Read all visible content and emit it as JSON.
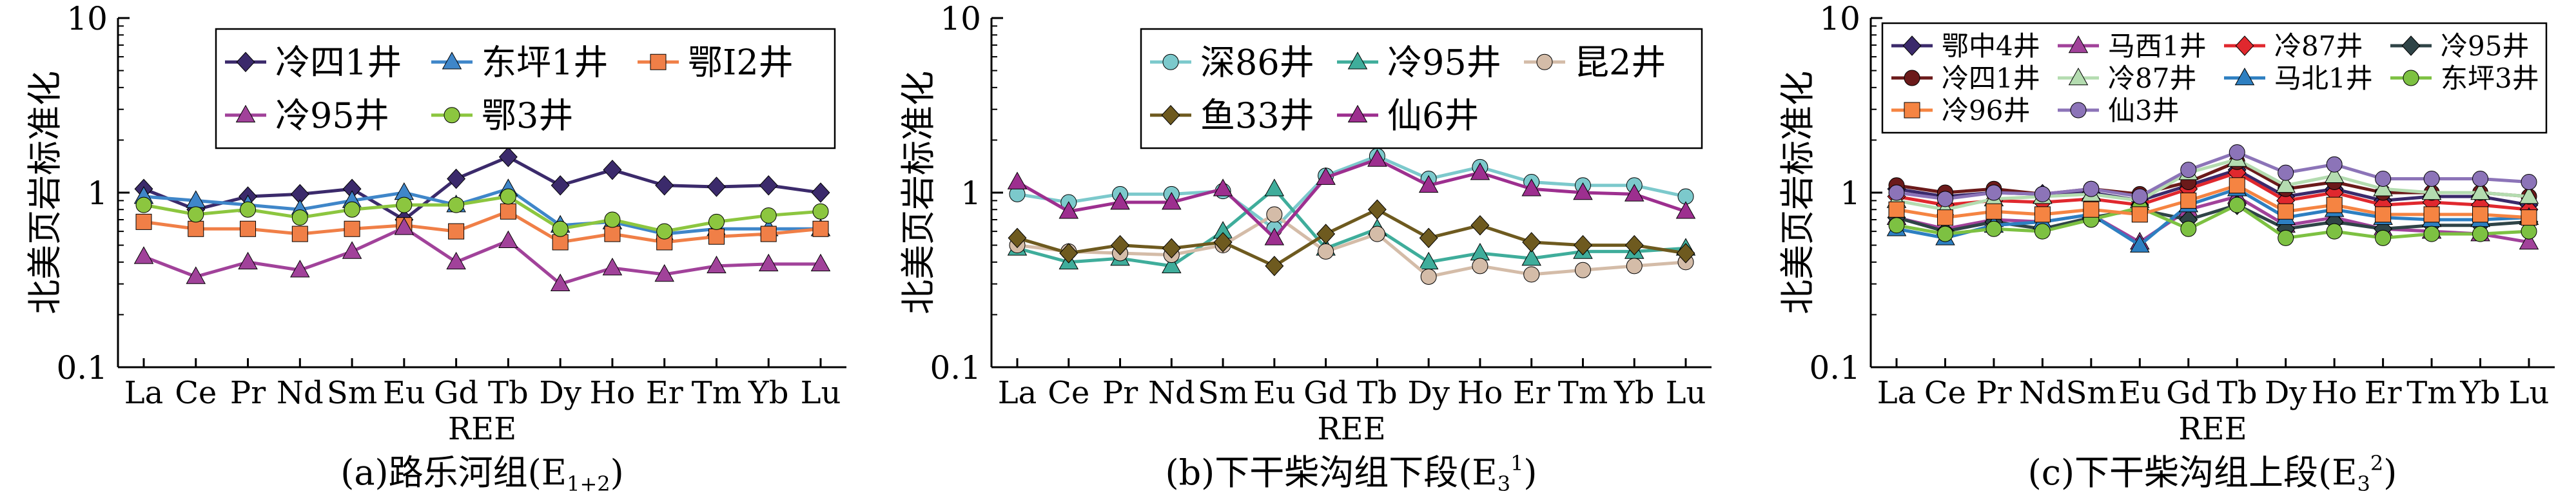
{
  "colors": {
    "dark_purple": "#3b2a6b",
    "steel_blue": "#3f86c9",
    "orange": "#f07f47",
    "magenta": "#a1429a",
    "lime": "#8cc63f",
    "teal_light": "#7cc9cc",
    "teal": "#3fad9b",
    "beige": "#d4bca8",
    "olive_brown": "#6e5a1f",
    "bright_magenta": "#9d2f8f",
    "red": "#e0282e",
    "dark_slate": "#2f4447",
    "dark_red": "#6b1a1a",
    "pale_green": "#b4dcb0",
    "med_blue": "#2d7fc1",
    "green": "#7dc142",
    "orange2": "#f58442",
    "lavender": "#8c74b8"
  },
  "chart_data": [
    {
      "type": "line",
      "caption_main": "(a)路乐河组(E",
      "caption_sub": "1+2",
      "caption_end": ")",
      "xlabel": "REE",
      "ylabel": "北美页岩标准化",
      "yscale": "log",
      "ylim": [
        0.1,
        10
      ],
      "yticks": [
        "0.1",
        "1",
        "10"
      ],
      "categories": [
        "La",
        "Ce",
        "Pr",
        "Nd",
        "Sm",
        "Eu",
        "Gd",
        "Tb",
        "Dy",
        "Ho",
        "Er",
        "Tm",
        "Yb",
        "Lu"
      ],
      "legend_columns": 3,
      "series": [
        {
          "name": "冷四1井",
          "color": "#3b2a6b",
          "marker": "diamond",
          "values": [
            1.05,
            0.8,
            0.95,
            0.98,
            1.05,
            0.7,
            1.2,
            1.6,
            1.1,
            1.35,
            1.1,
            1.08,
            1.1,
            1.0
          ]
        },
        {
          "name": "东坪1井",
          "color": "#3f86c9",
          "marker": "triangle",
          "values": [
            0.95,
            0.9,
            0.85,
            0.8,
            0.9,
            1.0,
            0.85,
            1.05,
            0.65,
            0.68,
            0.58,
            0.62,
            0.62,
            0.62
          ]
        },
        {
          "name": "鄂I2井",
          "color": "#f07f47",
          "marker": "square",
          "values": [
            0.68,
            0.62,
            0.62,
            0.58,
            0.62,
            0.65,
            0.6,
            0.78,
            0.52,
            0.58,
            0.52,
            0.56,
            0.58,
            0.62
          ]
        },
        {
          "name": "冷95井",
          "color": "#a1429a",
          "marker": "triangle",
          "values": [
            0.43,
            0.33,
            0.4,
            0.36,
            0.46,
            0.63,
            0.4,
            0.53,
            0.3,
            0.37,
            0.34,
            0.38,
            0.39,
            0.39
          ]
        },
        {
          "name": "鄂3井",
          "color": "#8cc63f",
          "marker": "circle",
          "values": [
            0.85,
            0.75,
            0.8,
            0.72,
            0.8,
            0.85,
            0.85,
            0.95,
            0.62,
            0.7,
            0.6,
            0.68,
            0.74,
            0.78
          ]
        }
      ]
    },
    {
      "type": "line",
      "caption_main": "(b)下干柴沟组下段(E",
      "caption_sub": "3",
      "caption_sup": "1",
      "caption_end": ")",
      "xlabel": "REE",
      "ylabel": "北美页岩标准化",
      "yscale": "log",
      "ylim": [
        0.1,
        10
      ],
      "yticks": [
        "0.1",
        "1",
        "10"
      ],
      "categories": [
        "La",
        "Ce",
        "Pr",
        "Nd",
        "Sm",
        "Eu",
        "Gd",
        "Tb",
        "Dy",
        "Ho",
        "Er",
        "Tm",
        "Yb",
        "Lu"
      ],
      "legend_columns": 3,
      "series": [
        {
          "name": "深86井",
          "color": "#7cc9cc",
          "marker": "circle",
          "values": [
            0.98,
            0.88,
            0.98,
            0.98,
            1.02,
            0.62,
            1.25,
            1.62,
            1.2,
            1.4,
            1.15,
            1.1,
            1.1,
            0.95
          ]
        },
        {
          "name": "冷95井",
          "color": "#3fad9b",
          "marker": "triangle",
          "values": [
            0.48,
            0.4,
            0.42,
            0.38,
            0.6,
            1.05,
            0.48,
            0.62,
            0.4,
            0.45,
            0.42,
            0.46,
            0.46,
            0.48
          ]
        },
        {
          "name": "昆2井",
          "color": "#d4bca8",
          "marker": "circle",
          "values": [
            0.5,
            0.46,
            0.45,
            0.44,
            0.5,
            0.75,
            0.46,
            0.58,
            0.33,
            0.38,
            0.34,
            0.36,
            0.38,
            0.4
          ]
        },
        {
          "name": "鱼33井",
          "color": "#6e5a1f",
          "marker": "diamond",
          "values": [
            0.55,
            0.45,
            0.5,
            0.48,
            0.52,
            0.38,
            0.58,
            0.8,
            0.55,
            0.65,
            0.52,
            0.5,
            0.5,
            0.45
          ]
        },
        {
          "name": "仙6井",
          "color": "#9d2f8f",
          "marker": "triangle",
          "values": [
            1.15,
            0.78,
            0.88,
            0.88,
            1.05,
            0.55,
            1.22,
            1.55,
            1.1,
            1.3,
            1.05,
            1.0,
            0.98,
            0.78
          ]
        }
      ]
    },
    {
      "type": "line",
      "caption_main": "(c)下干柴沟组上段(E",
      "caption_sub": "3",
      "caption_sup": "2",
      "caption_end": ")",
      "xlabel": "REE",
      "ylabel": "北美页岩标准化",
      "yscale": "log",
      "ylim": [
        0.1,
        10
      ],
      "yticks": [
        "0.1",
        "1",
        "10"
      ],
      "categories": [
        "La",
        "Ce",
        "Pr",
        "Nd",
        "Sm",
        "Eu",
        "Gd",
        "Tb",
        "Dy",
        "Ho",
        "Er",
        "Tm",
        "Yb",
        "Lu"
      ],
      "legend_columns": 4,
      "series": [
        {
          "name": "鄂中4井",
          "color": "#3b2a6b",
          "marker": "diamond",
          "values": [
            1.05,
            0.95,
            1.0,
            0.98,
            1.0,
            0.9,
            1.1,
            1.35,
            0.95,
            1.05,
            0.9,
            0.95,
            0.95,
            0.85
          ]
        },
        {
          "name": "马西1井",
          "color": "#a1429a",
          "marker": "triangle",
          "values": [
            0.72,
            0.62,
            0.7,
            0.68,
            0.75,
            0.52,
            0.8,
            0.95,
            0.65,
            0.72,
            0.62,
            0.6,
            0.58,
            0.52
          ]
        },
        {
          "name": "冷87井",
          "color": "#e0282e",
          "marker": "diamond",
          "values": [
            0.95,
            0.85,
            0.9,
            0.88,
            0.92,
            0.85,
            1.05,
            1.3,
            0.9,
            1.0,
            0.85,
            0.88,
            0.85,
            0.8
          ]
        },
        {
          "name": "冷95井",
          "color": "#2f4447",
          "marker": "diamond",
          "values": [
            0.72,
            0.6,
            0.68,
            0.62,
            0.72,
            0.8,
            0.7,
            0.85,
            0.62,
            0.68,
            0.62,
            0.65,
            0.65,
            0.68
          ]
        },
        {
          "name": "冷四1井",
          "color": "#6b1a1a",
          "marker": "circle",
          "values": [
            1.1,
            1.0,
            1.05,
            0.98,
            1.05,
            0.98,
            1.15,
            1.5,
            1.05,
            1.15,
            1.0,
            1.0,
            1.0,
            0.95
          ]
        },
        {
          "name": "冷87井",
          "color": "#b4dcb0",
          "marker": "triangle",
          "values": [
            0.9,
            0.8,
            0.92,
            0.95,
            0.98,
            0.9,
            1.3,
            1.55,
            1.1,
            1.25,
            1.05,
            1.0,
            1.0,
            0.95
          ]
        },
        {
          "name": "马北1井",
          "color": "#2d7fc1",
          "marker": "triangle",
          "values": [
            0.62,
            0.55,
            0.65,
            0.68,
            0.75,
            0.5,
            0.85,
            1.05,
            0.72,
            0.8,
            0.72,
            0.7,
            0.7,
            0.72
          ]
        },
        {
          "name": "东坪3井",
          "color": "#7dc142",
          "marker": "circle",
          "values": [
            0.65,
            0.58,
            0.62,
            0.6,
            0.7,
            0.82,
            0.62,
            0.85,
            0.55,
            0.6,
            0.55,
            0.58,
            0.58,
            0.6
          ]
        },
        {
          "name": "冷96井",
          "color": "#f58442",
          "marker": "square",
          "values": [
            0.8,
            0.72,
            0.78,
            0.75,
            0.8,
            0.75,
            0.9,
            1.1,
            0.78,
            0.85,
            0.75,
            0.75,
            0.75,
            0.72
          ]
        },
        {
          "name": "仙3井",
          "color": "#8c74b8",
          "marker": "circle",
          "values": [
            1.0,
            0.92,
            1.0,
            0.98,
            1.05,
            0.95,
            1.35,
            1.7,
            1.3,
            1.45,
            1.2,
            1.2,
            1.2,
            1.15
          ]
        }
      ]
    }
  ]
}
